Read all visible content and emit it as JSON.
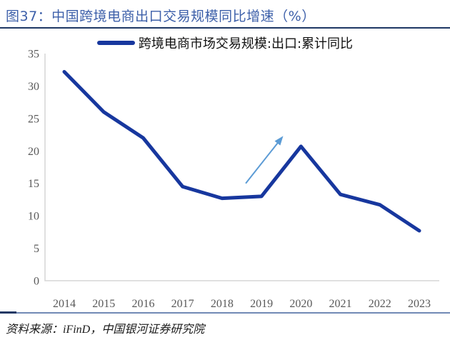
{
  "header": {
    "title": "图37：中国跨境电商出口交易规模同比增速（%）"
  },
  "legend": {
    "label": "跨境电商市场交易规模:出口:累计同比"
  },
  "chart_data": {
    "type": "line",
    "title": "中国跨境电商出口交易规模同比增速（%）",
    "categories": [
      "2014",
      "2015",
      "2016",
      "2017",
      "2018",
      "2019",
      "2020",
      "2021",
      "2022",
      "2023"
    ],
    "series": [
      {
        "name": "跨境电商市场交易规模:出口:累计同比",
        "color": "#17379E",
        "values": [
          32.2,
          26.0,
          22.0,
          14.5,
          12.7,
          13.0,
          20.7,
          13.3,
          11.7,
          7.7
        ]
      }
    ],
    "xlabel": "",
    "ylabel": "",
    "ylim": [
      0,
      35
    ],
    "yticks": [
      0,
      5,
      10,
      15,
      20,
      25,
      30,
      35
    ],
    "grid": false,
    "legend_position": "top-center",
    "annotations": [
      {
        "type": "arrow",
        "color": "#5B9BD5",
        "from": {
          "x": 2018.6,
          "y": 15.0
        },
        "to": {
          "x": 2019.55,
          "y": 22.3
        }
      }
    ]
  },
  "footer": {
    "source": "资料来源：iFinD，中国银河证券研究院"
  },
  "colors": {
    "title_blue": "#3C5FA9",
    "rule_navy": "#1F3864",
    "footer_rule_blue": "#7189B5",
    "line_blue": "#17379E",
    "arrow_blue": "#5B9BD5",
    "axis_gray": "#D6D6D6",
    "tick_text_gray": "#595959"
  }
}
